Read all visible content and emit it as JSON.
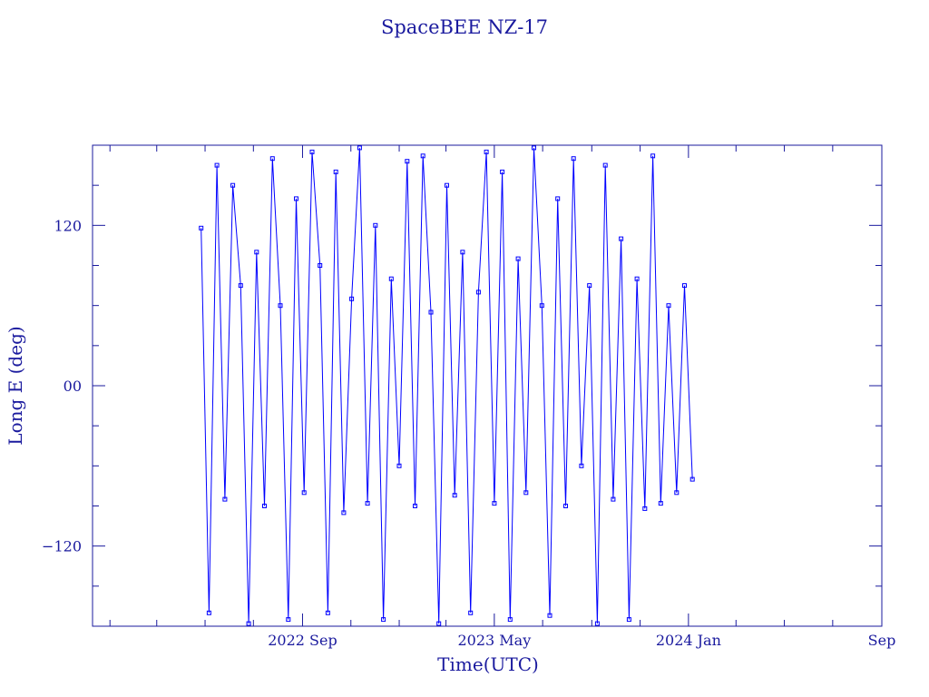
{
  "chart_data": {
    "type": "line",
    "title": "SpaceBEE NZ-17",
    "xlabel": "Time(UTC)",
    "ylabel": "Long E (deg)",
    "x_range": [
      "2021-12-10",
      "2024-09-01"
    ],
    "ylim": [
      -180,
      180
    ],
    "x_ticks": [
      {
        "date": "2022-09-01",
        "label": "2022 Sep"
      },
      {
        "date": "2023-05-01",
        "label": "2023 May"
      },
      {
        "date": "2024-01-01",
        "label": "2024 Jan"
      },
      {
        "date": "2024-09-01",
        "label": "Sep"
      }
    ],
    "y_ticks": [
      {
        "value": 120,
        "label": "120"
      },
      {
        "value": 0,
        "label": "00"
      },
      {
        "value": -120,
        "label": "−120"
      }
    ],
    "grid": false,
    "line_color": "#0000ff",
    "axis_color": "#1a1a9e",
    "marker": "square",
    "series": [
      {
        "x": [
          "2022-04-26",
          "2022-05-06",
          "2022-05-16",
          "2022-05-26",
          "2022-06-05",
          "2022-06-15",
          "2022-06-25",
          "2022-07-05",
          "2022-07-15",
          "2022-07-25",
          "2022-08-04",
          "2022-08-14",
          "2022-08-24",
          "2022-09-03",
          "2022-09-13",
          "2022-09-23",
          "2022-10-03",
          "2022-10-13",
          "2022-10-23",
          "2022-11-02",
          "2022-11-12",
          "2022-11-22",
          "2022-12-02",
          "2022-12-12",
          "2022-12-22",
          "2023-01-01",
          "2023-01-11",
          "2023-01-21",
          "2023-01-31",
          "2023-02-10",
          "2023-02-20",
          "2023-03-02",
          "2023-03-12",
          "2023-03-22",
          "2023-04-01",
          "2023-04-11",
          "2023-04-21",
          "2023-05-01",
          "2023-05-11",
          "2023-05-21",
          "2023-05-31",
          "2023-06-10",
          "2023-06-20",
          "2023-06-30",
          "2023-07-10",
          "2023-07-20",
          "2023-07-30",
          "2023-08-09",
          "2023-08-19",
          "2023-08-29",
          "2023-09-08",
          "2023-09-18",
          "2023-09-28",
          "2023-10-08",
          "2023-10-18",
          "2023-10-28",
          "2023-11-07",
          "2023-11-17",
          "2023-11-27",
          "2023-12-07",
          "2023-12-17",
          "2023-12-27",
          "2024-01-06"
        ],
        "y": [
          118,
          -170,
          165,
          -85,
          150,
          75,
          -178,
          100,
          -90,
          170,
          60,
          -175,
          140,
          -80,
          175,
          90,
          -170,
          160,
          -95,
          65,
          178,
          -88,
          120,
          -175,
          80,
          -60,
          168,
          -90,
          172,
          55,
          -178,
          150,
          -82,
          100,
          -170,
          70,
          175,
          -88,
          160,
          -175,
          95,
          -80,
          178,
          60,
          -172,
          140,
          -90,
          170,
          -60,
          75,
          -178,
          165,
          -85,
          110,
          -175,
          80,
          -92,
          172,
          -88,
          60,
          -80,
          75,
          -70
        ]
      }
    ]
  }
}
